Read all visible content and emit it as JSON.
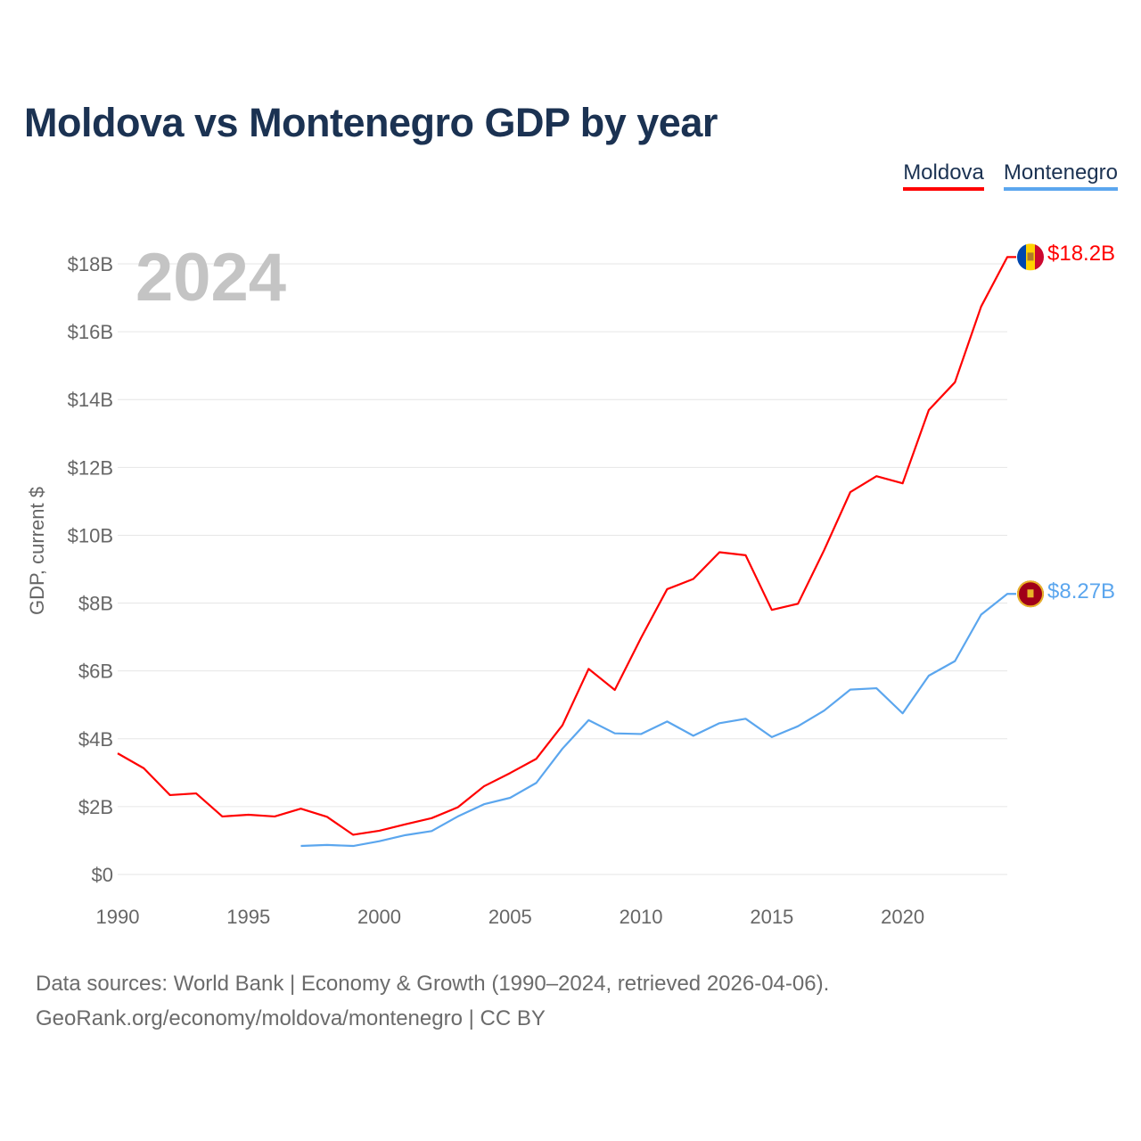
{
  "title": "Moldova vs Montenegro GDP by year",
  "year_label": "2024",
  "legend": [
    "Moldova",
    "Montenegro"
  ],
  "colors": {
    "Moldova": "#ff0000",
    "Montenegro": "#5ba6ee"
  },
  "end_labels": {
    "Moldova": "$18.2B",
    "Montenegro": "$8.27B"
  },
  "source": {
    "line1": "Data sources: World Bank | Economy & Growth (1990–2024, retrieved 2026-04-06).",
    "line2": "GeoRank.org/economy/moldova/montenegro | CC BY"
  },
  "chart_data": {
    "type": "line",
    "title": "Moldova vs Montenegro GDP by year",
    "xlabel": "",
    "ylabel": "GDP, current $",
    "xlim": [
      1990,
      2024
    ],
    "ylim": [
      0,
      18
    ],
    "x_ticks": [
      1990,
      1995,
      2000,
      2005,
      2010,
      2015,
      2020
    ],
    "y_ticks": [
      0,
      2,
      4,
      6,
      8,
      10,
      12,
      14,
      16,
      18
    ],
    "y_tick_labels": [
      "$0",
      "$2B",
      "$4B",
      "$6B",
      "$8B",
      "$10B",
      "$12B",
      "$14B",
      "$16B",
      "$18B"
    ],
    "grid": "horizontal",
    "legend_position": "top-right",
    "series": [
      {
        "name": "Moldova",
        "start_year": 1990,
        "values": [
          3.57,
          3.13,
          2.34,
          2.39,
          1.71,
          1.76,
          1.71,
          1.94,
          1.7,
          1.17,
          1.29,
          1.48,
          1.66,
          1.98,
          2.6,
          2.99,
          3.41,
          4.4,
          6.06,
          5.44,
          6.97,
          8.41,
          8.71,
          9.5,
          9.41,
          7.8,
          7.98,
          9.56,
          11.27,
          11.74,
          11.53,
          13.69,
          14.51,
          16.74,
          18.2
        ]
      },
      {
        "name": "Montenegro",
        "start_year": 1997,
        "values": [
          0.84,
          0.87,
          0.84,
          0.98,
          1.16,
          1.28,
          1.71,
          2.07,
          2.26,
          2.7,
          3.71,
          4.55,
          4.16,
          4.14,
          4.51,
          4.09,
          4.46,
          4.59,
          4.05,
          4.37,
          4.83,
          5.45,
          5.49,
          4.75,
          5.86,
          6.29,
          7.66,
          8.27
        ]
      }
    ]
  }
}
